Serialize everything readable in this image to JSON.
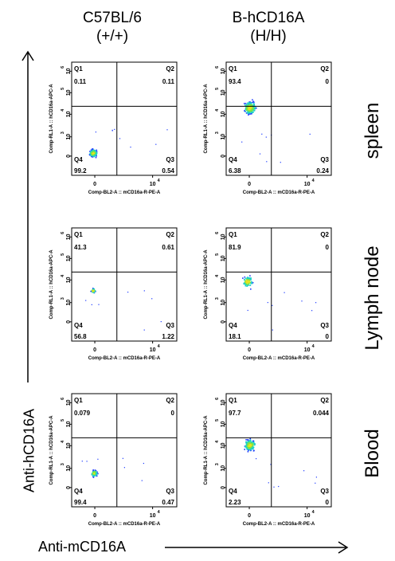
{
  "columns": [
    {
      "line1": "C57BL/6",
      "line2": "(+/+)"
    },
    {
      "line1": "B-hCD16A",
      "line2": "(H/H)"
    }
  ],
  "rows": [
    "spleen",
    "Lymph node",
    "Blood"
  ],
  "axes": {
    "y_main": "Anti-hCD16A",
    "x_main": "Anti-mCD16A",
    "panel_ylabel": "Comp-RL1-A :: hCD16a-APC-A",
    "panel_xlabel": "Comp-BL2-A :: mCD16a-R-PE-A",
    "x_ticks": [
      "0",
      "10"
    ],
    "x_tick_exp": "4",
    "y_ticks": [
      {
        "base": "10",
        "exp": "6"
      },
      {
        "base": "10",
        "exp": "5"
      },
      {
        "base": "10",
        "exp": "4"
      },
      {
        "base": "10",
        "exp": "3"
      },
      {
        "base": "0",
        "exp": ""
      }
    ]
  },
  "quadrant_names": [
    "Q1",
    "Q2",
    "Q4",
    "Q3"
  ],
  "colors": {
    "dots_low": "#1e3cff",
    "dots_mid": "#1fd0c8",
    "dots_high": "#7fe640",
    "dots_peak": "#e8e020"
  },
  "chart_data": [
    {
      "type": "scatter",
      "tissue": "spleen",
      "strain": "C57BL/6 (+/+)",
      "quadrants": {
        "Q1": "0.11",
        "Q2": "0.11",
        "Q3": "0.54",
        "Q4": "99.2"
      },
      "population": {
        "x": 0.2,
        "y": 0.2,
        "spread": 0.05,
        "n": 180
      }
    },
    {
      "type": "scatter",
      "tissue": "spleen",
      "strain": "B-hCD16A (H/H)",
      "quadrants": {
        "Q1": "93.4",
        "Q2": "0",
        "Q3": "0.24",
        "Q4": "6.38"
      },
      "population": {
        "x": 0.22,
        "y": 0.6,
        "spread": 0.08,
        "n": 260
      }
    },
    {
      "type": "scatter",
      "tissue": "Lymph node",
      "strain": "C57BL/6 (+/+)",
      "quadrants": {
        "Q1": "41.3",
        "Q2": "0.61",
        "Q3": "1.22",
        "Q4": "56.8"
      },
      "population": {
        "x": 0.2,
        "y": 0.45,
        "spread": 0.03,
        "n": 70
      }
    },
    {
      "type": "scatter",
      "tissue": "Lymph node",
      "strain": "B-hCD16A (H/H)",
      "quadrants": {
        "Q1": "81.9",
        "Q2": "0",
        "Q3": "0",
        "Q4": "18.1"
      },
      "population": {
        "x": 0.2,
        "y": 0.53,
        "spread": 0.07,
        "n": 90
      }
    },
    {
      "type": "scatter",
      "tissue": "Blood",
      "strain": "C57BL/6 (+/+)",
      "quadrants": {
        "Q1": "0.079",
        "Q2": "0",
        "Q3": "0.47",
        "Q4": "99.4"
      },
      "population": {
        "x": 0.21,
        "y": 0.3,
        "spread": 0.04,
        "n": 150
      }
    },
    {
      "type": "scatter",
      "tissue": "Blood",
      "strain": "B-hCD16A (H/H)",
      "quadrants": {
        "Q1": "97.7",
        "Q2": "0.044",
        "Q3": "0",
        "Q4": "2.23"
      },
      "population": {
        "x": 0.22,
        "y": 0.55,
        "spread": 0.07,
        "n": 240
      }
    }
  ]
}
